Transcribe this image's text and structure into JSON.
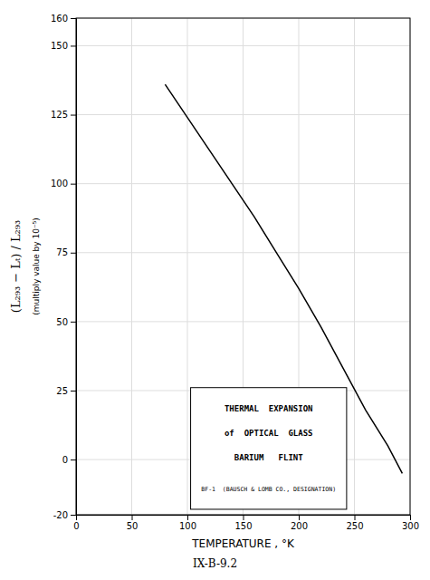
{
  "chart_data": {
    "type": "line",
    "xlabel": "TEMPERATURE , °K",
    "ylabel": "(L₂₉₃ − Lₜ) / L₂₉₃",
    "annotations": [
      "(multiply value by 10⁻⁵)",
      "THERMAL  EXPANSION",
      "of  OPTICAL  GLASS",
      "BARIUM   FLINT",
      "BF-1  (BAUSCH & LOMB CO., DESIGNATION)",
      "IX-B-9.2"
    ],
    "x": [
      80,
      100,
      120,
      140,
      160,
      180,
      200,
      220,
      240,
      260,
      280,
      293
    ],
    "values": [
      136,
      124,
      112,
      100,
      88,
      75,
      62,
      48,
      33,
      18,
      5,
      -5
    ],
    "color": "#000000",
    "xlim": [
      0,
      300
    ],
    "ylim": [
      -20,
      160
    ],
    "xticks": [
      0,
      50,
      100,
      150,
      200,
      250,
      300
    ],
    "yticks": [
      -20,
      0,
      25,
      50,
      75,
      100,
      125,
      150,
      160
    ],
    "grid": true
  }
}
